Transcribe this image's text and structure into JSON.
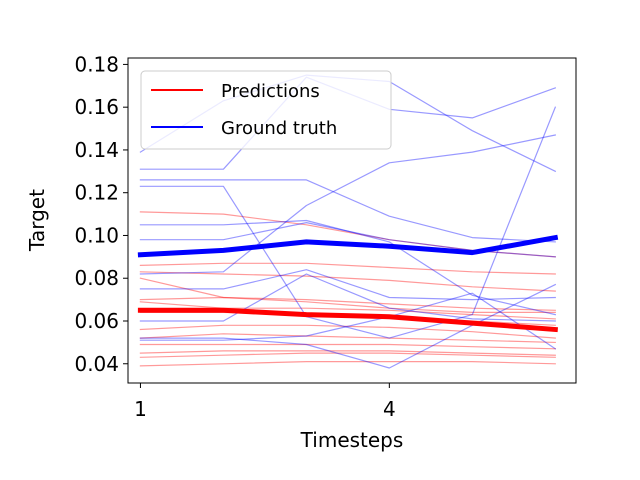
{
  "chart_data": {
    "type": "line",
    "title": "",
    "xlabel": "Timesteps",
    "ylabel": "Target",
    "xlim": [
      0.85,
      6.25
    ],
    "ylim": [
      0.031,
      0.183
    ],
    "xticks": [
      1,
      4
    ],
    "yticks": [
      0.04,
      0.06,
      0.08,
      0.1,
      0.12,
      0.14,
      0.16,
      0.18
    ],
    "ytick_labels": [
      "0.04",
      "0.06",
      "0.08",
      "0.10",
      "0.12",
      "0.14",
      "0.16",
      "0.18"
    ],
    "x": [
      1,
      2,
      3,
      4,
      5,
      6
    ],
    "grid": false,
    "legend": {
      "placement": "top-left",
      "entries": [
        {
          "label": "Predictions",
          "color": "#ff0000"
        },
        {
          "label": "Ground truth",
          "color": "#0000ff"
        }
      ]
    },
    "colors": {
      "predictions": "#ff0000",
      "ground_truth": "#0000ff"
    },
    "series": [
      {
        "group": "predictions",
        "emphasis": false,
        "values": [
          0.111,
          0.11,
          0.105,
          0.098,
          0.093,
          0.09
        ]
      },
      {
        "group": "predictions",
        "emphasis": false,
        "values": [
          0.086,
          0.087,
          0.087,
          0.085,
          0.083,
          0.082
        ]
      },
      {
        "group": "predictions",
        "emphasis": false,
        "values": [
          0.083,
          0.082,
          0.081,
          0.079,
          0.076,
          0.074
        ]
      },
      {
        "group": "predictions",
        "emphasis": false,
        "values": [
          0.08,
          0.071,
          0.069,
          0.066,
          0.064,
          0.064
        ]
      },
      {
        "group": "predictions",
        "emphasis": false,
        "values": [
          0.07,
          0.071,
          0.07,
          0.068,
          0.066,
          0.065
        ]
      },
      {
        "group": "predictions",
        "emphasis": false,
        "values": [
          0.069,
          0.066,
          0.066,
          0.065,
          0.063,
          0.061
        ]
      },
      {
        "group": "predictions",
        "emphasis": false,
        "values": [
          0.064,
          0.064,
          0.063,
          0.062,
          0.06,
          0.058
        ]
      },
      {
        "group": "predictions",
        "emphasis": false,
        "values": [
          0.056,
          0.058,
          0.058,
          0.057,
          0.055,
          0.052
        ]
      },
      {
        "group": "predictions",
        "emphasis": false,
        "values": [
          0.052,
          0.054,
          0.053,
          0.052,
          0.051,
          0.05
        ]
      },
      {
        "group": "predictions",
        "emphasis": false,
        "values": [
          0.049,
          0.049,
          0.049,
          0.049,
          0.048,
          0.047
        ]
      },
      {
        "group": "predictions",
        "emphasis": false,
        "values": [
          0.045,
          0.046,
          0.046,
          0.046,
          0.045,
          0.044
        ]
      },
      {
        "group": "predictions",
        "emphasis": false,
        "values": [
          0.043,
          0.044,
          0.045,
          0.045,
          0.044,
          0.043
        ]
      },
      {
        "group": "predictions",
        "emphasis": false,
        "values": [
          0.039,
          0.04,
          0.041,
          0.041,
          0.041,
          0.04
        ]
      },
      {
        "group": "predictions",
        "emphasis": true,
        "values": [
          0.065,
          0.065,
          0.063,
          0.062,
          0.059,
          0.056
        ]
      },
      {
        "group": "ground_truth",
        "emphasis": false,
        "values": [
          0.139,
          0.163,
          0.175,
          0.172,
          0.149,
          0.13
        ]
      },
      {
        "group": "ground_truth",
        "emphasis": false,
        "values": [
          0.131,
          0.131,
          0.174,
          0.159,
          0.155,
          0.169
        ]
      },
      {
        "group": "ground_truth",
        "emphasis": false,
        "values": [
          0.126,
          0.126,
          0.126,
          0.109,
          0.099,
          0.097
        ]
      },
      {
        "group": "ground_truth",
        "emphasis": false,
        "values": [
          0.123,
          0.123,
          0.062,
          0.052,
          0.063,
          0.16
        ]
      },
      {
        "group": "ground_truth",
        "emphasis": false,
        "values": [
          0.105,
          0.105,
          0.107,
          0.097,
          0.072,
          0.063
        ]
      },
      {
        "group": "ground_truth",
        "emphasis": false,
        "values": [
          0.082,
          0.083,
          0.114,
          0.134,
          0.139,
          0.147
        ]
      },
      {
        "group": "ground_truth",
        "emphasis": false,
        "values": [
          0.098,
          0.098,
          0.106,
          0.098,
          0.093,
          0.09
        ]
      },
      {
        "group": "ground_truth",
        "emphasis": false,
        "values": [
          0.075,
          0.075,
          0.084,
          0.071,
          0.07,
          0.071
        ]
      },
      {
        "group": "ground_truth",
        "emphasis": false,
        "values": [
          0.06,
          0.06,
          0.082,
          0.066,
          0.061,
          0.06
        ]
      },
      {
        "group": "ground_truth",
        "emphasis": false,
        "values": [
          0.052,
          0.052,
          0.049,
          0.038,
          0.058,
          0.077
        ]
      },
      {
        "group": "ground_truth",
        "emphasis": false,
        "values": [
          0.051,
          0.051,
          0.053,
          0.062,
          0.073,
          0.047
        ]
      },
      {
        "group": "ground_truth",
        "emphasis": true,
        "values": [
          0.091,
          0.093,
          0.097,
          0.095,
          0.092,
          0.099
        ]
      }
    ]
  }
}
